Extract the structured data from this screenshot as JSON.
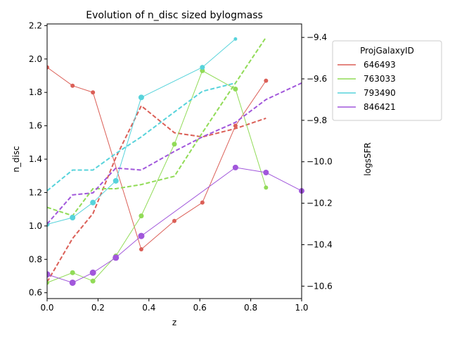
{
  "chart_data": {
    "type": "line",
    "title": "Evolution of n_disc sized bylogmass",
    "xlabel": "z",
    "ylabel_left": "n_disc",
    "ylabel_right": "logsSFR",
    "xlim": [
      0.0,
      1.0
    ],
    "ylim_left": [
      0.565,
      2.21
    ],
    "ylim_right": [
      -10.66,
      -9.335
    ],
    "x_ticks": [
      "0.0",
      "0.2",
      "0.4",
      "0.6",
      "0.8",
      "1.0"
    ],
    "y_left_ticks": [
      "0.6",
      "0.8",
      "1.0",
      "1.2",
      "1.4",
      "1.6",
      "1.8",
      "2.0",
      "2.2"
    ],
    "y_right_ticks": [
      "−10.6",
      "−10.4",
      "−10.2",
      "−10.0",
      "−9.8",
      "−9.6",
      "−9.4"
    ],
    "legend": {
      "title": "ProjGalaxyID",
      "position": "outside-right"
    },
    "series": [
      {
        "name": "646493",
        "color": "#db5f57",
        "n_disc": {
          "x": [
            0.0,
            0.1,
            0.18,
            0.37,
            0.5,
            0.61,
            0.74,
            0.86
          ],
          "y": [
            1.95,
            1.84,
            1.8,
            0.86,
            1.03,
            1.14,
            1.6,
            1.87
          ],
          "size": [
            3,
            3,
            3,
            3,
            3,
            3,
            3,
            3
          ]
        },
        "logsSFR": {
          "x": [
            0.0,
            0.1,
            0.18,
            0.27,
            0.37,
            0.5,
            0.61,
            0.74,
            0.86
          ],
          "y": [
            -10.58,
            -10.37,
            -10.25,
            -9.98,
            -9.73,
            -9.86,
            -9.88,
            -9.84,
            -9.79
          ]
        }
      },
      {
        "name": "763033",
        "color": "#91db57",
        "n_disc": {
          "x": [
            0.0,
            0.1,
            0.18,
            0.27,
            0.37,
            0.5,
            0.61,
            0.74,
            0.86
          ],
          "y": [
            0.66,
            0.72,
            0.67,
            0.82,
            1.06,
            1.49,
            1.93,
            1.82,
            1.23
          ],
          "size": [
            3,
            3.5,
            3.5,
            3.5,
            3.5,
            3.5,
            3.5,
            3.5,
            3
          ]
        },
        "logsSFR": {
          "x": [
            0.0,
            0.1,
            0.18,
            0.27,
            0.37,
            0.5,
            0.61,
            0.74,
            0.86
          ],
          "y": [
            -10.22,
            -10.26,
            -10.13,
            -10.13,
            -10.11,
            -10.07,
            -9.86,
            -9.62,
            -9.4
          ]
        }
      },
      {
        "name": "793490",
        "color": "#57d3db",
        "n_disc": {
          "x": [
            0.0,
            0.1,
            0.18,
            0.27,
            0.37,
            0.61,
            0.74
          ],
          "y": [
            1.01,
            1.05,
            1.14,
            1.27,
            1.77,
            1.95,
            2.12
          ],
          "size": [
            3.5,
            4,
            4,
            4,
            4,
            3.5,
            2.5
          ]
        },
        "logsSFR": {
          "x": [
            0.0,
            0.1,
            0.18,
            0.27,
            0.37,
            0.5,
            0.61,
            0.74
          ],
          "y": [
            -10.14,
            -10.04,
            -10.04,
            -9.96,
            -9.88,
            -9.76,
            -9.66,
            -9.62
          ]
        }
      },
      {
        "name": "846421",
        "color": "#a157db",
        "n_disc": {
          "x": [
            0.0,
            0.1,
            0.18,
            0.27,
            0.37,
            0.74,
            0.86,
            1.0
          ],
          "y": [
            0.71,
            0.66,
            0.72,
            0.81,
            0.94,
            1.35,
            1.32,
            1.21
          ],
          "size": [
            4.5,
            4.5,
            4.5,
            4.5,
            4.5,
            4,
            4,
            4
          ]
        },
        "logsSFR": {
          "x": [
            0.0,
            0.1,
            0.18,
            0.27,
            0.37,
            0.5,
            0.61,
            0.74,
            0.86,
            1.0
          ],
          "y": [
            -10.3,
            -10.16,
            -10.15,
            -10.03,
            -10.04,
            -9.95,
            -9.88,
            -9.81,
            -9.7,
            -9.62
          ]
        }
      }
    ]
  }
}
